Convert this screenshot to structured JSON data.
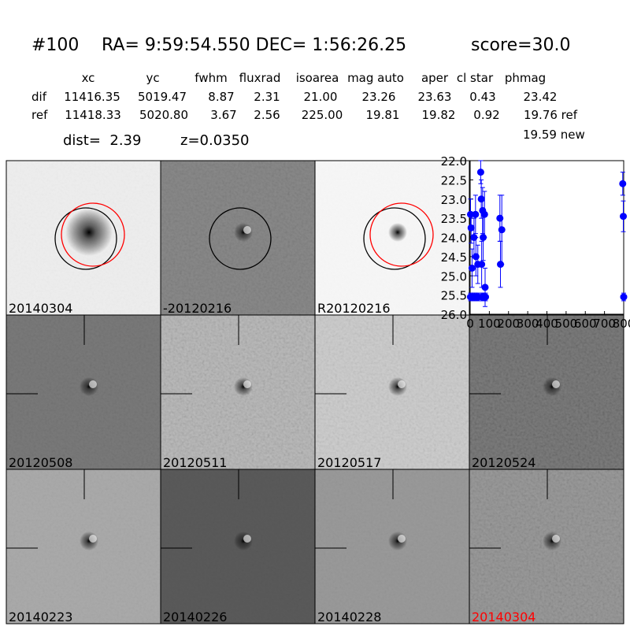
{
  "header": {
    "id": "#100",
    "coords": "RA= 9:59:54.550 DEC= 1:56:26.25",
    "score": "score=30.0"
  },
  "table": {
    "columns": [
      "xc",
      "yc",
      "fwhm",
      "fluxrad",
      "isoarea",
      "mag auto",
      "aper",
      "cl star",
      "phmag"
    ],
    "rows": [
      {
        "label": "dif",
        "cells": [
          "11416.35",
          "5019.47",
          "8.87",
          "2.31",
          "21.00",
          "23.26",
          "23.63",
          "0.43",
          "23.42"
        ]
      },
      {
        "label": "ref",
        "cells": [
          "11418.33",
          "5020.80",
          "3.67",
          "2.56",
          "225.00",
          "19.81",
          "19.82",
          "0.92",
          "19.76 ref"
        ]
      }
    ],
    "note": "19.59 new"
  },
  "dist": "dist=  2.39",
  "z": "z=0.0350",
  "thumbnails": [
    {
      "label": "20140304"
    },
    {
      "label": "-20120216"
    },
    {
      "label": "R20120216"
    },
    {
      "label": "20120508"
    },
    {
      "label": "20120511"
    },
    {
      "label": "20120517"
    },
    {
      "label": "20120524"
    },
    {
      "label": "20140223"
    },
    {
      "label": "20140226"
    },
    {
      "label": "20140228"
    },
    {
      "label": "20140304",
      "color": "#ff0000"
    }
  ],
  "chart_data": {
    "type": "scatter",
    "color": "#0000ff",
    "x": [
      2,
      2,
      5,
      10,
      12,
      20,
      22,
      28,
      30,
      32,
      40,
      42,
      55,
      58,
      60,
      62,
      65,
      68,
      70,
      75,
      78,
      80,
      155,
      158,
      165,
      795,
      798,
      800
    ],
    "values": [
      23.4,
      25.55,
      23.75,
      24.8,
      25.55,
      24.0,
      25.55,
      23.4,
      24.5,
      25.55,
      24.7,
      25.55,
      22.3,
      23.0,
      24.7,
      25.55,
      23.3,
      24.0,
      25.55,
      23.4,
      25.3,
      25.55,
      23.5,
      24.7,
      23.8,
      22.6,
      23.45,
      25.55
    ],
    "errors": [
      0.4,
      0.1,
      0.4,
      0.5,
      0.1,
      0.5,
      0.1,
      0.5,
      0.5,
      0.1,
      0.5,
      0.1,
      0.3,
      0.5,
      0.6,
      0.1,
      0.6,
      0.6,
      0.1,
      0.6,
      0.5,
      0.1,
      0.6,
      0.6,
      0.9,
      0.3,
      0.4,
      0.1
    ],
    "xlim": [
      0,
      800
    ],
    "xticks": [
      0,
      100,
      200,
      300,
      400,
      500,
      600,
      700,
      800
    ],
    "ylim": [
      26,
      22
    ],
    "yticks": [
      {
        "value": 22,
        "label": "22.0"
      },
      22.5,
      {
        "value": 23,
        "label": "23.0"
      },
      23.5,
      {
        "value": 24,
        "label": "24.0"
      },
      24.5,
      {
        "value": 25,
        "label": "25.0"
      },
      25.5,
      {
        "value": 26,
        "label": "26.0"
      }
    ]
  }
}
